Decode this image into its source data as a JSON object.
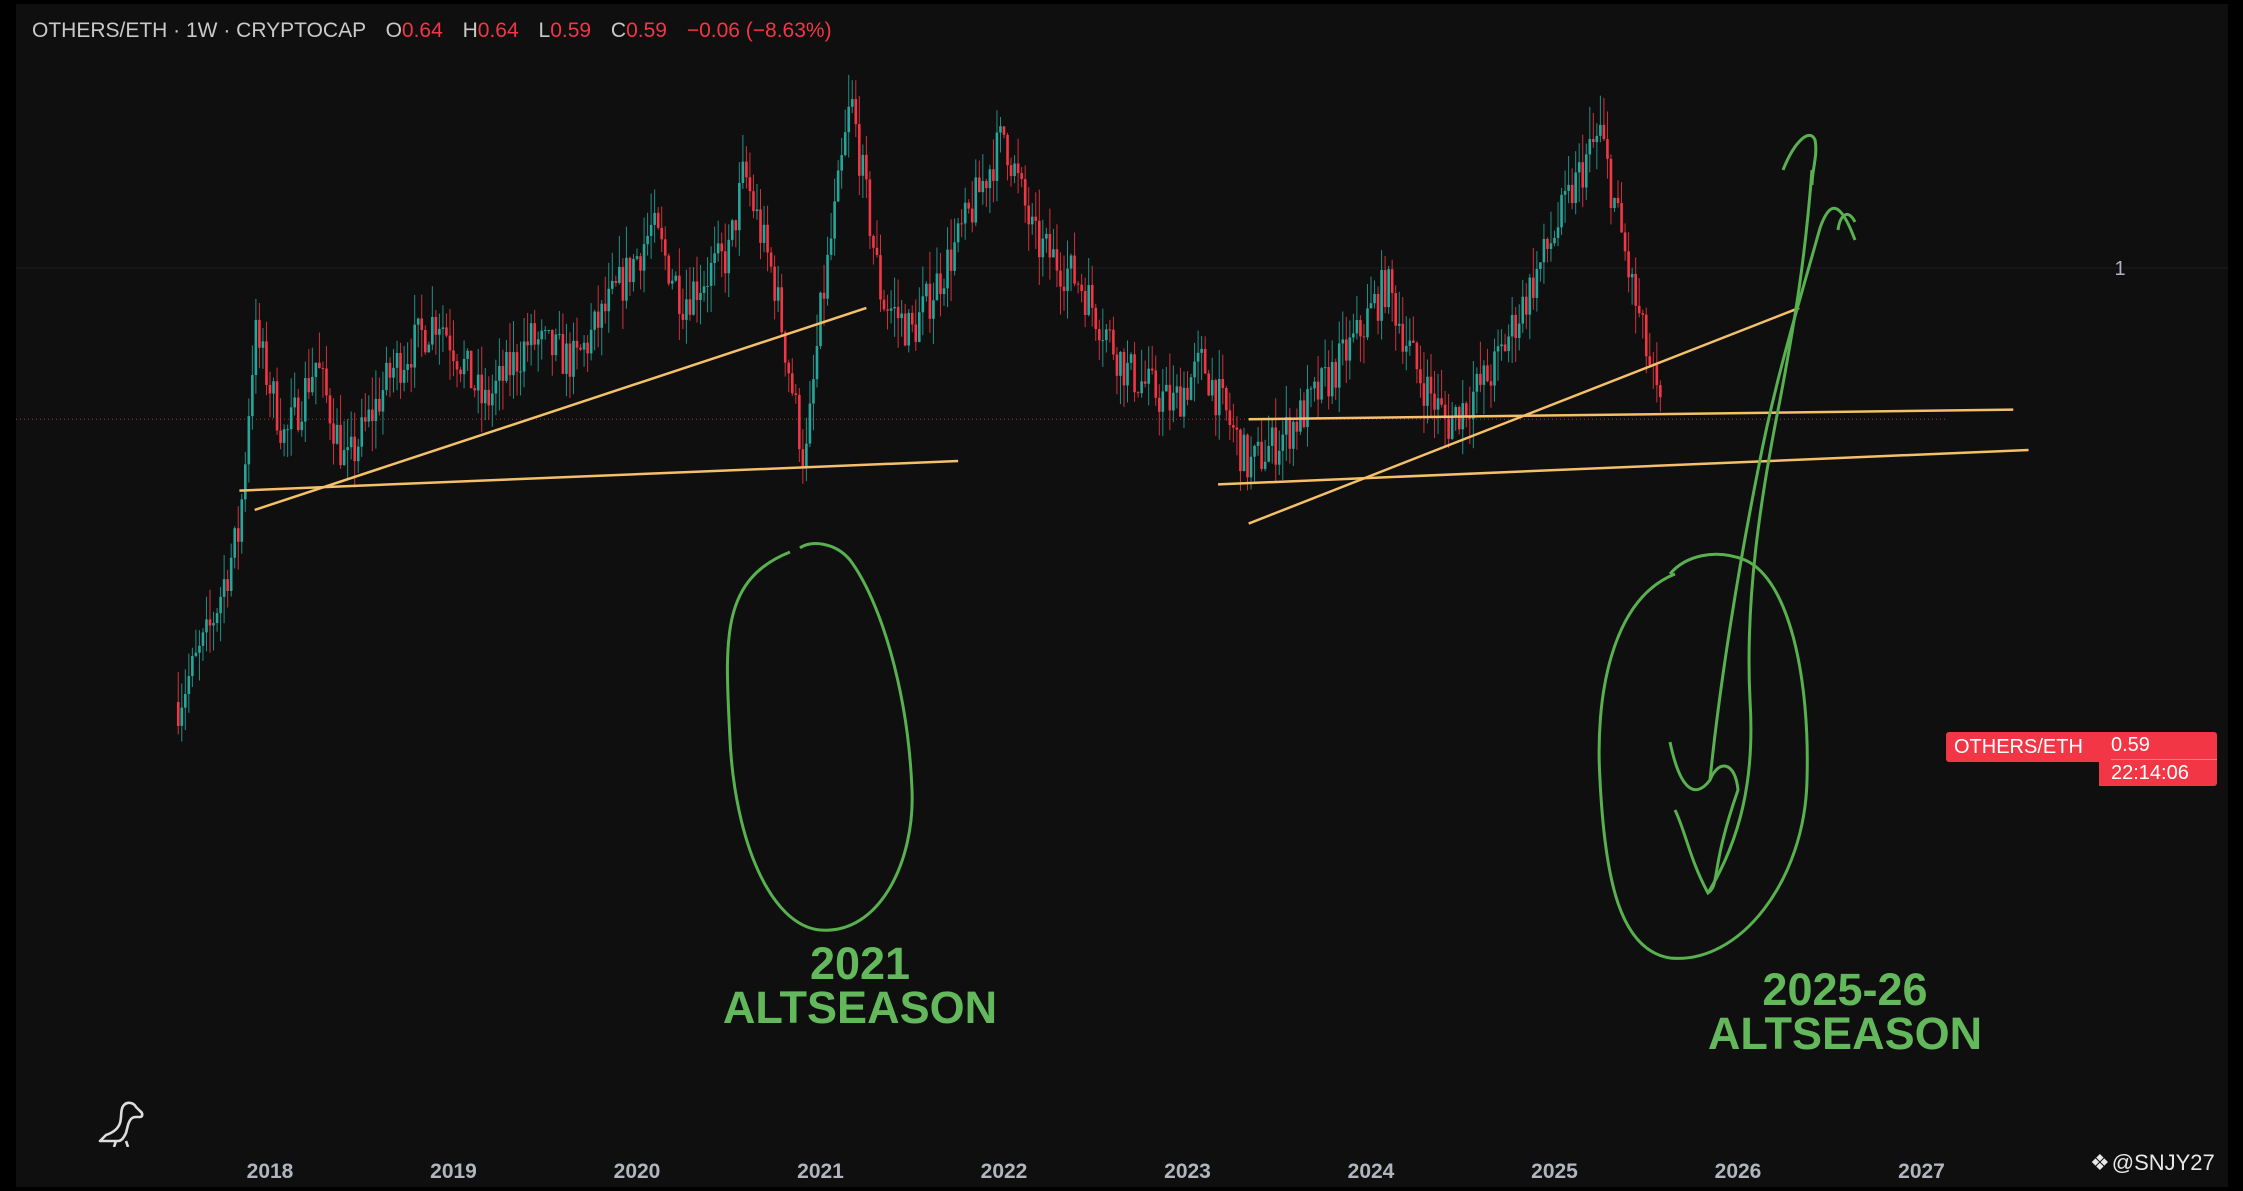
{
  "header": {
    "symbol": "OTHERS/ETH · 1W · CRYPTOCAP",
    "open_label": "O",
    "open_value": "0.64",
    "high_label": "H",
    "high_value": "0.64",
    "low_label": "L",
    "low_value": "0.59",
    "close_label": "C",
    "close_value": "0.59",
    "change": "−0.06 (−8.63%)"
  },
  "price_tag": {
    "symbol": "OTHERS/ETH",
    "price": "0.59",
    "countdown": "22:14:06"
  },
  "attribution": {
    "icon": "binance-diamond-icon",
    "handle": "@SNJY27"
  },
  "annotations": [
    {
      "line1": "2021",
      "line2": "ALTSEASON"
    },
    {
      "line1": "2025-26",
      "line2": "ALTSEASON"
    }
  ],
  "colors": {
    "background": "#0f0f0f",
    "up": "#26a69a",
    "down": "#f23645",
    "trendline": "#f5c06a",
    "annotation": "#62b85a",
    "axis_text": "#b2b5be"
  },
  "chart_data": {
    "type": "candlestick",
    "symbol": "OTHERS/ETH",
    "timeframe": "1W",
    "scale": "log",
    "x_ticks": [
      "2018",
      "2019",
      "2020",
      "2021",
      "2022",
      "2023",
      "2024",
      "2025",
      "2026",
      "2027"
    ],
    "y_ticks": [
      {
        "value": 1,
        "label": "1"
      }
    ],
    "last_price": 0.59,
    "close_path": [
      [
        "2017-07",
        0.22
      ],
      [
        "2017-09",
        0.28
      ],
      [
        "2017-11",
        0.4
      ],
      [
        "2017-12",
        0.8
      ],
      [
        "2018-02",
        0.55
      ],
      [
        "2018-04",
        0.72
      ],
      [
        "2018-06",
        0.5
      ],
      [
        "2018-09",
        0.7
      ],
      [
        "2018-12",
        0.85
      ],
      [
        "2019-03",
        0.62
      ],
      [
        "2019-06",
        0.78
      ],
      [
        "2019-09",
        0.72
      ],
      [
        "2019-12",
        0.95
      ],
      [
        "2020-02",
        1.15
      ],
      [
        "2020-04",
        0.9
      ],
      [
        "2020-07",
        1.05
      ],
      [
        "2020-08",
        1.4
      ],
      [
        "2020-10",
        0.95
      ],
      [
        "2020-12",
        0.5
      ],
      [
        "2021-01",
        0.85
      ],
      [
        "2021-03",
        1.8
      ],
      [
        "2021-05",
        0.9
      ],
      [
        "2021-07",
        0.8
      ],
      [
        "2021-10",
        1.1
      ],
      [
        "2022-01",
        1.6
      ],
      [
        "2022-03",
        1.1
      ],
      [
        "2022-06",
        0.95
      ],
      [
        "2022-09",
        0.7
      ],
      [
        "2022-12",
        0.62
      ],
      [
        "2023-02",
        0.72
      ],
      [
        "2023-05",
        0.5
      ],
      [
        "2023-07",
        0.55
      ],
      [
        "2023-09",
        0.62
      ],
      [
        "2023-12",
        0.78
      ],
      [
        "2024-02",
        0.95
      ],
      [
        "2024-04",
        0.7
      ],
      [
        "2024-06",
        0.58
      ],
      [
        "2024-09",
        0.7
      ],
      [
        "2024-12",
        1.0
      ],
      [
        "2025-03",
        1.45
      ],
      [
        "2025-04",
        1.6
      ],
      [
        "2025-06",
        0.95
      ],
      [
        "2025-08",
        0.59
      ]
    ],
    "trendlines": [
      {
        "from": [
          "2017-11",
          0.46
        ],
        "to": [
          "2021-10",
          0.51
        ]
      },
      {
        "from": [
          "2017-12",
          0.43
        ],
        "to": [
          "2021-04",
          0.87
        ]
      },
      {
        "from": [
          "2023-03",
          0.47
        ],
        "to": [
          "2027-08",
          0.53
        ]
      },
      {
        "from": [
          "2023-05",
          0.59
        ],
        "to": [
          "2027-07",
          0.61
        ]
      },
      {
        "from": [
          "2023-05",
          0.41
        ],
        "to": [
          "2026-05",
          0.87
        ]
      }
    ]
  }
}
